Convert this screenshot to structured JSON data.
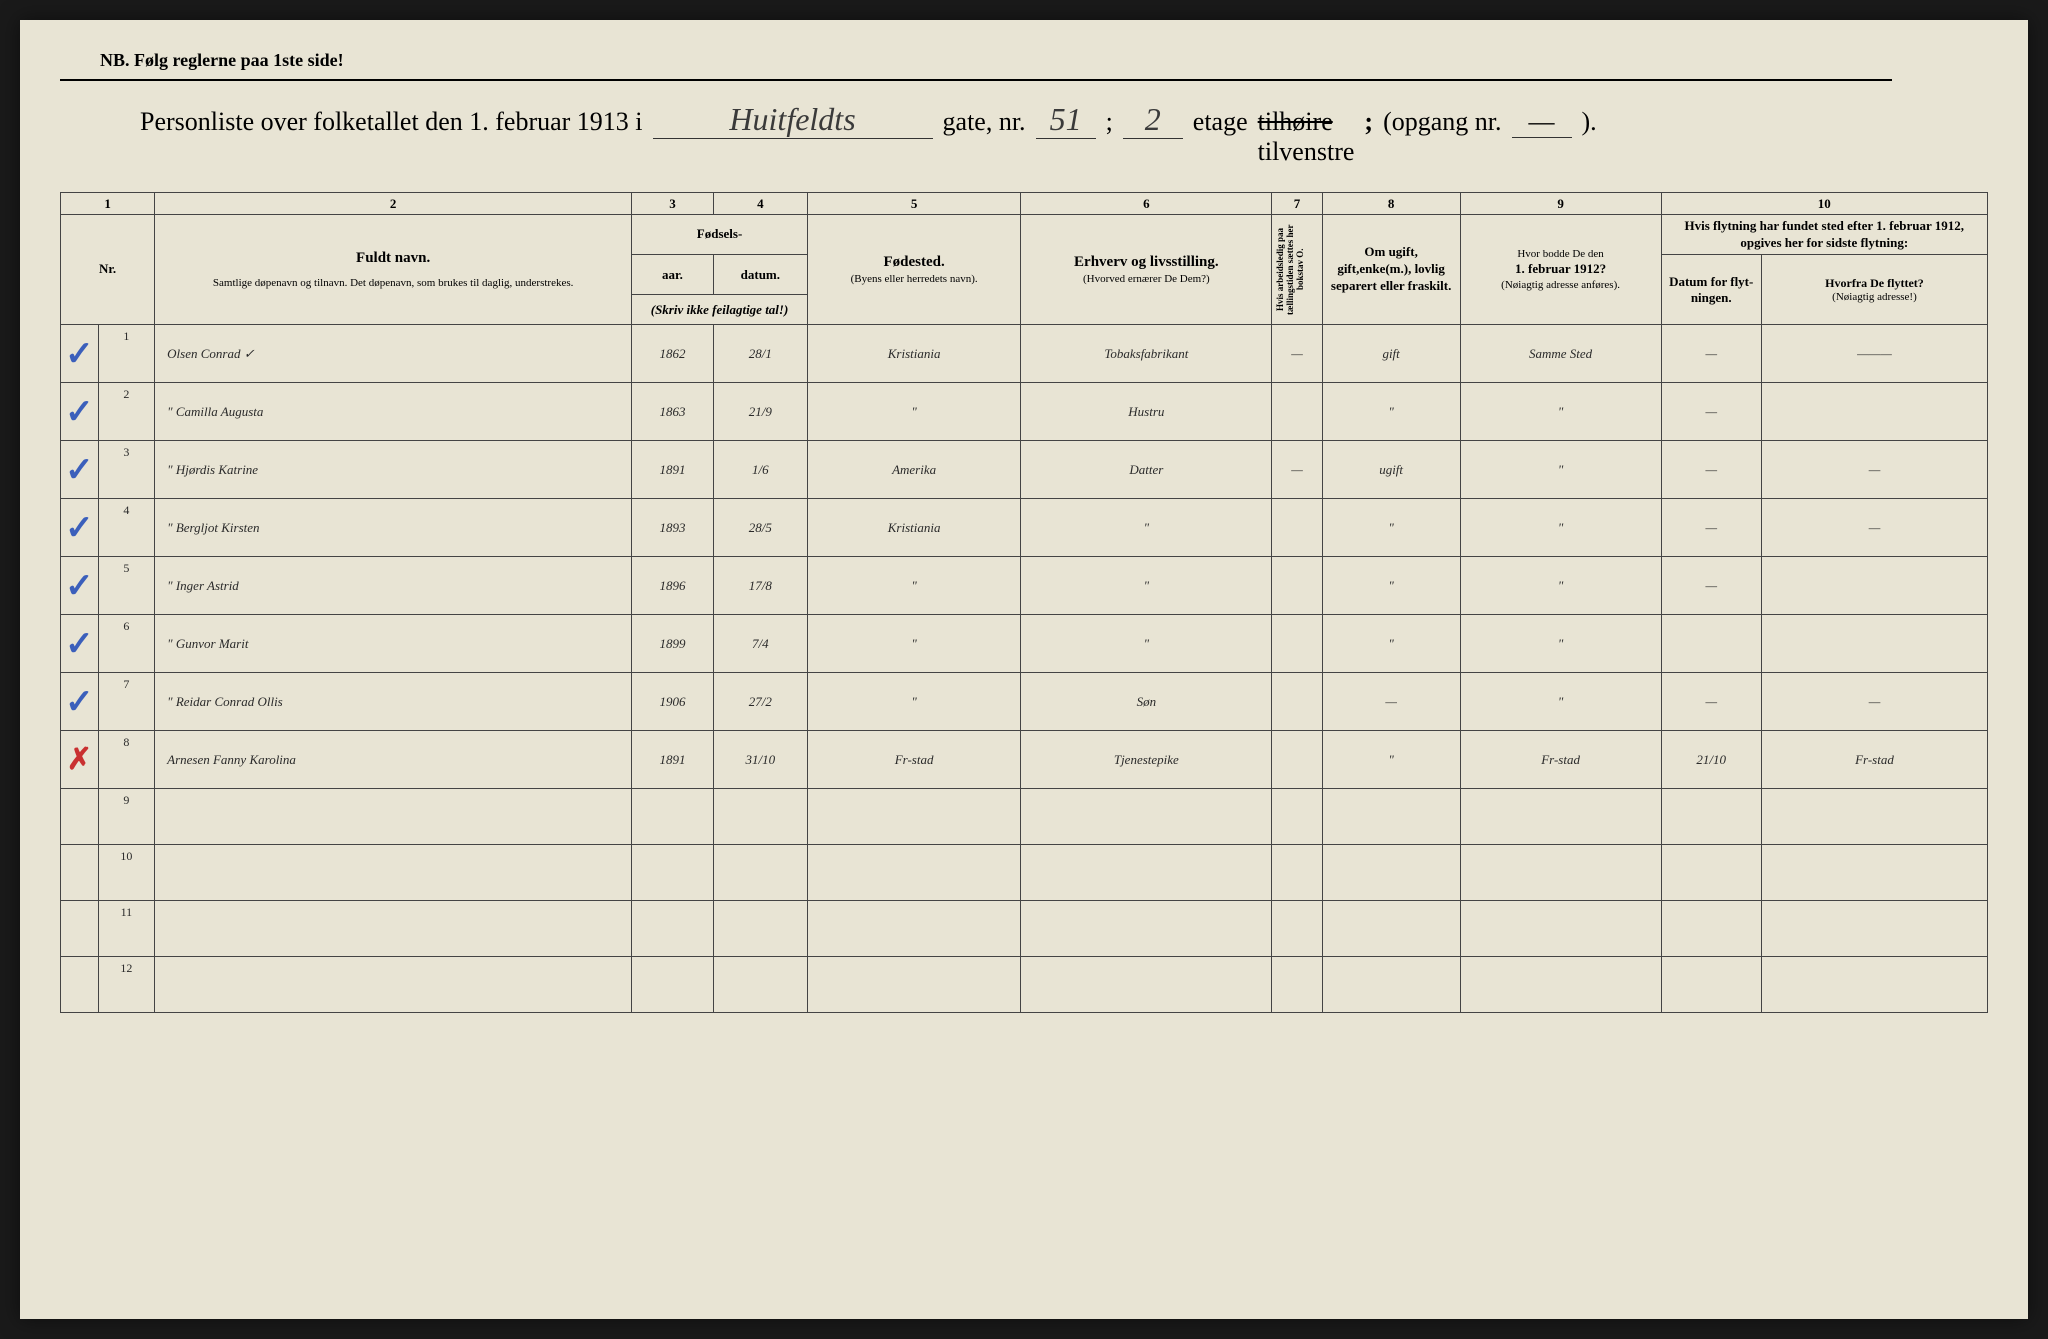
{
  "header": {
    "nb_text": "NB.  Følg reglerne paa 1ste side!",
    "title_prefix": "Personliste over folketallet den 1. februar 1913 i",
    "street_name": "Huitfeldts",
    "gate_label": "gate, nr.",
    "gate_nr": "51",
    "separator": ";",
    "etage_nr": "2",
    "etage_label": "etage",
    "side_strike": "tilhøire",
    "side_keep": "tilvenstre",
    "opgang_label": "(opgang nr.",
    "opgang_nr": "—",
    "close_paren": ")."
  },
  "columns": {
    "nums": [
      "1",
      "2",
      "3",
      "4",
      "5",
      "6",
      "7",
      "8",
      "9",
      "10"
    ],
    "nr": "Nr.",
    "name_bold": "Fuldt navn.",
    "name_sub": "Samtlige døpenavn og tilnavn.  Det døpenavn, som brukes til daglig, understrekes.",
    "birth_header": "Fødsels-",
    "year": "aar.",
    "date": "datum.",
    "birth_note": "(Skriv ikke feilagtige tal!)",
    "birthplace": "Fødested.",
    "birthplace_sub": "(Byens eller herredets navn).",
    "occupation": "Erhverv og livsstilling.",
    "occupation_sub": "(Hvorved ernærer De Dem?)",
    "col7": "Hvis arbeidsledig paa tællingstiden sættes her bokstav O.",
    "col8": "Om ugift, gift,enke(m.), lovlig separert eller fraskilt.",
    "col9_a": "Hvor bodde De den",
    "col9_b": "1. februar 1912?",
    "col9_c": "(Nøiagtig adresse anføres).",
    "col10_header": "Hvis flytning har fundet sted efter 1. februar 1912, opgives her for sidste flytning:",
    "col10a": "Datum for flyt-ningen.",
    "col10b": "Hvorfra De flyttet?",
    "col10b_sub": "(Nøiagtig adresse!)"
  },
  "rows": [
    {
      "nr": "1",
      "mark": "✓",
      "mark_class": "check-mark",
      "name": "Olsen Conrad   ✓",
      "year": "1862",
      "date": "28/1",
      "birthplace": "Kristiania",
      "occupation": "Tobaksfabrikant",
      "col7": "—",
      "status": "gift",
      "addr1912": "Samme Sted",
      "move_date": "—",
      "move_from": "———"
    },
    {
      "nr": "2",
      "mark": "✓",
      "mark_class": "check-mark",
      "name": "\"   Camilla Augusta",
      "year": "1863",
      "date": "21/9",
      "birthplace": "\"",
      "occupation": "Hustru",
      "col7": "",
      "status": "\"",
      "addr1912": "\"",
      "move_date": "—",
      "move_from": ""
    },
    {
      "nr": "3",
      "mark": "✓",
      "mark_class": "check-mark",
      "name": "\"   Hjørdis Katrine",
      "year": "1891",
      "date": "1/6",
      "birthplace": "Amerika",
      "occupation": "Datter",
      "col7": "—",
      "status": "ugift",
      "addr1912": "\"",
      "move_date": "—",
      "move_from": "—"
    },
    {
      "nr": "4",
      "mark": "✓",
      "mark_class": "check-mark",
      "name": "\"   Bergljot Kirsten",
      "year": "1893",
      "date": "28/5",
      "birthplace": "Kristiania",
      "occupation": "\"",
      "col7": "",
      "status": "\"",
      "addr1912": "\"",
      "move_date": "—",
      "move_from": "—"
    },
    {
      "nr": "5",
      "mark": "✓",
      "mark_class": "check-mark",
      "name": "\"   Inger Astrid",
      "year": "1896",
      "date": "17/8",
      "birthplace": "\"",
      "occupation": "\"",
      "col7": "",
      "status": "\"",
      "addr1912": "\"",
      "move_date": "—",
      "move_from": ""
    },
    {
      "nr": "6",
      "mark": "✓",
      "mark_class": "check-mark",
      "name": "\"   Gunvor Marit",
      "year": "1899",
      "date": "7/4",
      "birthplace": "\"",
      "occupation": "\"",
      "col7": "",
      "status": "\"",
      "addr1912": "\"",
      "move_date": "",
      "move_from": ""
    },
    {
      "nr": "7",
      "mark": "✓",
      "mark_class": "check-mark",
      "name": "\"   Reidar Conrad Ollis",
      "year": "1906",
      "date": "27/2",
      "birthplace": "\"",
      "occupation": "Søn",
      "col7": "",
      "status": "—",
      "addr1912": "\"",
      "move_date": "—",
      "move_from": "—"
    },
    {
      "nr": "8",
      "mark": "✗",
      "mark_class": "red-x",
      "name": "Arnesen Fanny Karolina",
      "year": "1891",
      "date": "31/10",
      "birthplace": "Fr-stad",
      "occupation": "Tjenestepike",
      "col7": "",
      "status": "\"",
      "addr1912": "Fr-stad",
      "move_date": "21/10",
      "move_from": "Fr-stad"
    }
  ],
  "empty_rows": [
    "9",
    "10",
    "11",
    "12"
  ]
}
